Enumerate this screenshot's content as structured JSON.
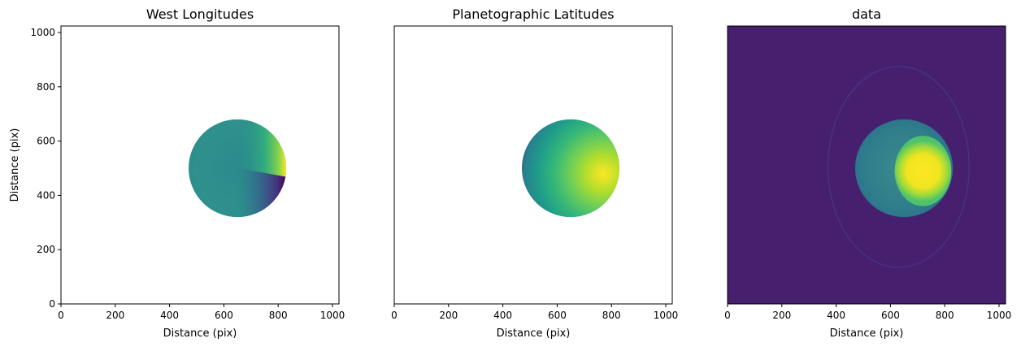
{
  "chart_data": [
    {
      "type": "heatmap",
      "title": "West Longitudes",
      "xlabel": "Distance (pix)",
      "ylabel": "Distance (pix)",
      "xlim": [
        0,
        1024
      ],
      "ylim": [
        0,
        1024
      ],
      "x_ticks": [
        0,
        200,
        400,
        600,
        800,
        1000
      ],
      "y_ticks": [
        0,
        200,
        400,
        600,
        800,
        1000
      ],
      "colormap": "viridis",
      "background": "#ffffff",
      "disk": {
        "center": [
          650,
          500
        ],
        "radius": 180
      },
      "features": {
        "seam_angle_deg": -10
      }
    },
    {
      "type": "heatmap",
      "title": "Planetographic Latitudes",
      "xlabel": "Distance (pix)",
      "ylabel": "",
      "xlim": [
        0,
        1024
      ],
      "ylim": [
        0,
        1024
      ],
      "x_ticks": [
        0,
        200,
        400,
        600,
        800,
        1000
      ],
      "y_ticks": [],
      "colormap": "viridis",
      "background": "#ffffff",
      "disk": {
        "center": [
          650,
          500
        ],
        "radius": 180
      },
      "features": {
        "peak": [
          770,
          480
        ]
      }
    },
    {
      "type": "heatmap",
      "title": "data",
      "xlabel": "Distance (pix)",
      "ylabel": "",
      "xlim": [
        0,
        1024
      ],
      "ylim": [
        0,
        1024
      ],
      "x_ticks": [
        0,
        200,
        400,
        600,
        800,
        1000
      ],
      "y_ticks": [],
      "colormap": "viridis",
      "background": "#46206f",
      "disk": {
        "center": [
          650,
          500
        ],
        "radius": 180
      },
      "features": {
        "bright_spot": [
          720,
          490
        ],
        "ring_center": [
          630,
          505
        ],
        "ring_radii": [
          260,
          370
        ]
      }
    }
  ]
}
